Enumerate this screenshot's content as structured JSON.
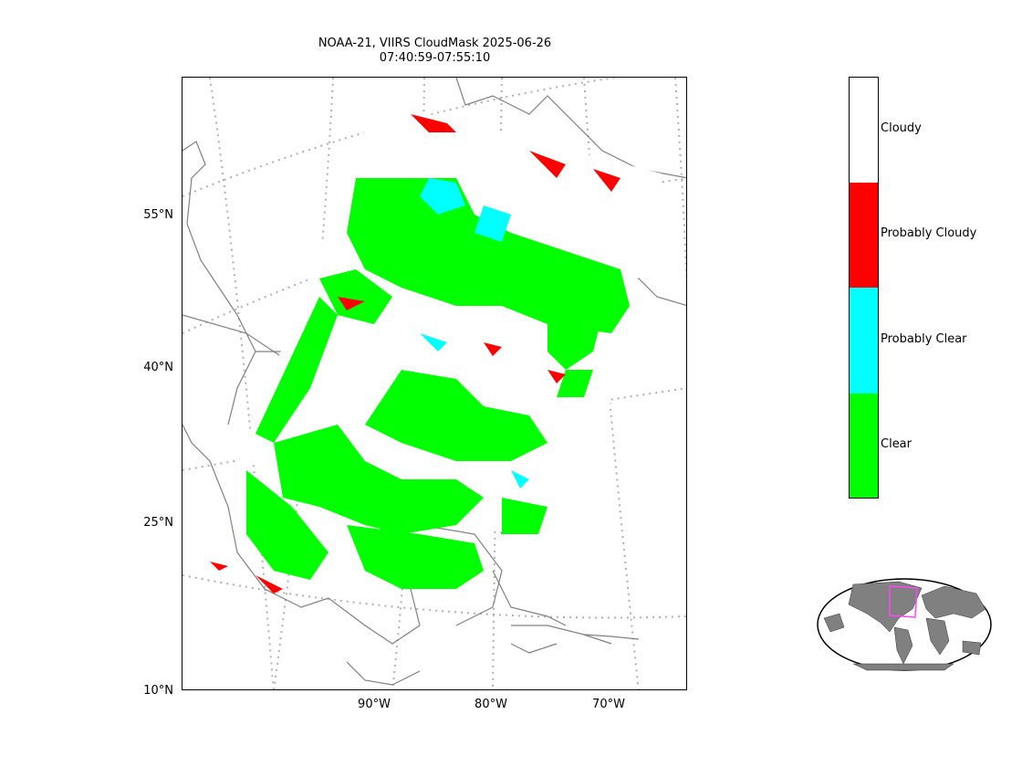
{
  "title": {
    "line1": "NOAA-21, VIIRS CloudMask 2025-06-26",
    "line2": "07:40:59-07:55:10"
  },
  "map": {
    "lat_labels": [
      "55°N",
      "40°N",
      "25°N",
      "10°N"
    ],
    "lon_labels": [
      "90°W",
      "80°W",
      "70°W"
    ]
  },
  "legend": {
    "categories": [
      {
        "label": "Cloudy",
        "color": "#ffffff"
      },
      {
        "label": "Probably Cloudy",
        "color": "#ff0000"
      },
      {
        "label": "Probably Clear",
        "color": "#00ffff"
      },
      {
        "label": "Clear",
        "color": "#00ff00"
      }
    ]
  },
  "colors": {
    "coastline": "#808080",
    "graticule": "#b0b0b0",
    "inset_land": "#808080",
    "inset_swath": "#ff44ff"
  }
}
